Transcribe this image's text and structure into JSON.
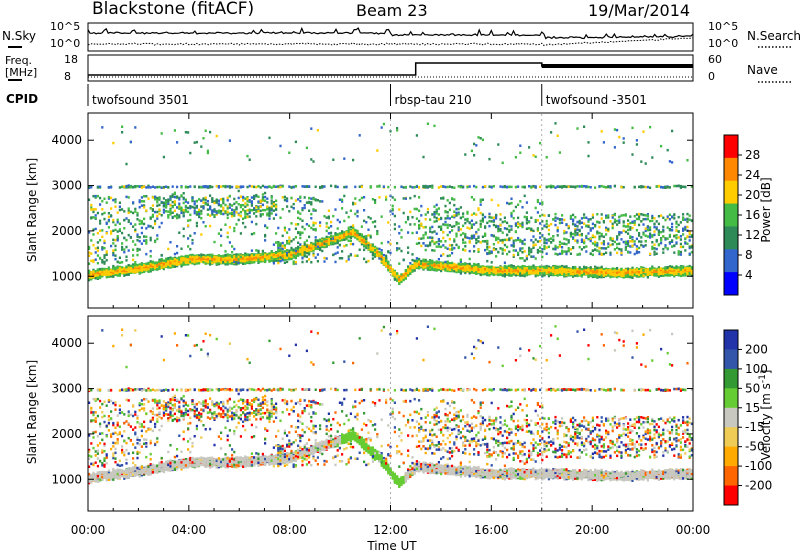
{
  "header": {
    "station": "Blackstone (fitACF)",
    "beam": "Beam 23",
    "date": "19/Mar/2014"
  },
  "noise_panel": {
    "left_label": "N.Sky",
    "right_label": "N.Search",
    "left_ticks": [
      "10^5",
      "10^0"
    ],
    "right_ticks": [
      "10^5",
      "10^0"
    ]
  },
  "freq_panel": {
    "left_label_1": "Freq.",
    "left_label_2": "[MHz]",
    "right_label": "Nave",
    "left_ticks": [
      "18",
      "8"
    ],
    "right_ticks": [
      "60",
      "0"
    ]
  },
  "cpid": {
    "label": "CPID",
    "segments": [
      {
        "name": "twofsound 3501",
        "start_hour": 0
      },
      {
        "name": "rbsp-tau 210",
        "start_hour": 12
      },
      {
        "name": "twofsound -3501",
        "start_hour": 18
      }
    ]
  },
  "chart_data": [
    {
      "type": "heatmap",
      "title": "",
      "ylabel": "Slant Range [km]",
      "xlabel": "",
      "xlim": [
        0,
        24
      ],
      "ylim": [
        300,
        4600
      ],
      "yticks": [
        1000,
        2000,
        3000,
        4000
      ],
      "colorbar": {
        "label": "Power [dB]",
        "ticks": [
          "28",
          "24",
          "20",
          "16",
          "12",
          "8",
          "4"
        ],
        "range": [
          0,
          32
        ],
        "colors": [
          "#0000ff",
          "#3366cc",
          "#2e8b57",
          "#44bb44",
          "#ffcc00",
          "#ff8800",
          "#ff0000"
        ]
      },
      "features": [
        {
          "name": "main echo band",
          "hours": [
            0,
            2,
            4,
            6,
            8,
            9.5,
            10.5,
            11.5,
            12.3,
            13,
            16,
            18,
            21,
            24
          ],
          "range_km": [
            1050,
            1200,
            1400,
            1400,
            1500,
            1800,
            2000,
            1500,
            950,
            1300,
            1150,
            1150,
            1100,
            1150
          ],
          "power_db": 24
        },
        {
          "name": "upper cluster",
          "hours": [
            2.5,
            7.5
          ],
          "range_km": [
            2350,
            2800
          ],
          "power_db": 16
        }
      ]
    },
    {
      "type": "heatmap",
      "title": "",
      "ylabel": "Slant Range [km]",
      "xlabel": "Time UT",
      "xlim": [
        0,
        24
      ],
      "ylim": [
        300,
        4600
      ],
      "yticks": [
        1000,
        2000,
        3000,
        4000
      ],
      "xticks": [
        "00:00",
        "04:00",
        "08:00",
        "12:00",
        "16:00",
        "20:00",
        "00:00"
      ],
      "colorbar": {
        "label": "Velocity [m s^-1]",
        "ticks": [
          "200",
          "100",
          "50",
          "15",
          "-15",
          "-50",
          "-100",
          "-200"
        ],
        "range": [
          -250,
          250
        ],
        "colors": [
          "#ff0000",
          "#ff6600",
          "#ffaa00",
          "#eecc55",
          "#c8c8c0",
          "#66cc33",
          "#339933",
          "#3355aa",
          "#2233aa"
        ]
      },
      "features": [
        {
          "name": "ground scatter band",
          "hours": [
            0,
            4,
            8,
            10,
            12.3,
            13,
            24
          ],
          "range_km": [
            1050,
            1300,
            1400,
            1900,
            1000,
            1300,
            1150
          ],
          "velocity": 0
        }
      ]
    }
  ]
}
